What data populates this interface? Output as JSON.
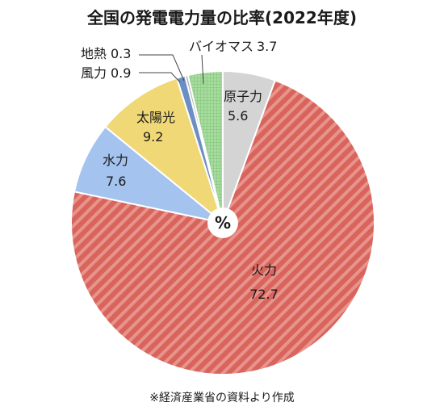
{
  "chart_data": {
    "type": "pie",
    "title": "全国の発電電力量の比率(2022年度)",
    "center_label": "%",
    "source": "※経済産業省の資料より作成",
    "slices": [
      {
        "name": "原子力",
        "value": 5.6,
        "value_text": "5.6",
        "color": "#d4d4d4"
      },
      {
        "name": "火力",
        "value": 72.7,
        "value_text": "72.7",
        "color": "#d9645c"
      },
      {
        "name": "水力",
        "value": 7.6,
        "value_text": "7.6",
        "color": "#a4c3ef"
      },
      {
        "name": "太陽光",
        "value": 9.2,
        "value_text": "9.2",
        "color": "#f0d877"
      },
      {
        "name": "風力",
        "value": 0.9,
        "value_text": "0.9",
        "color": "#6b8fc4"
      },
      {
        "name": "地熱",
        "value": 0.3,
        "value_text": "0.3",
        "color": "#b0b0b0"
      },
      {
        "name": "バイオマス",
        "value": 3.7,
        "value_text": "3.7",
        "color": "#a8dba0"
      }
    ]
  }
}
